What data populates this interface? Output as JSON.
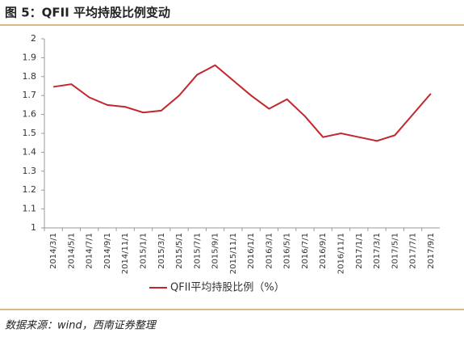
{
  "header": {
    "title": "图 5：QFII 平均持股比例变动"
  },
  "chart_data": {
    "type": "line",
    "categories": [
      "2014/3/1",
      "2014/5/1",
      "2014/7/1",
      "2014/9/1",
      "2014/11/1",
      "2015/1/1",
      "2015/3/1",
      "2015/5/1",
      "2015/7/1",
      "2015/9/1",
      "2015/11/1",
      "2016/1/1",
      "2016/3/1",
      "2016/5/1",
      "2016/7/1",
      "2016/9/1",
      "2016/11/1",
      "2017/1/1",
      "2017/3/1",
      "2017/5/1",
      "2017/7/1",
      "2017/9/1"
    ],
    "series": [
      {
        "name": "QFII平均持股比例（%）",
        "color": "#c0282d",
        "values": [
          1.746,
          1.76,
          1.69,
          1.65,
          1.64,
          1.61,
          1.62,
          1.7,
          1.81,
          1.86,
          1.78,
          1.7,
          1.63,
          1.68,
          1.59,
          1.48,
          1.5,
          1.48,
          1.46,
          1.49,
          1.6,
          1.71
        ]
      }
    ],
    "ylim": [
      1,
      2
    ],
    "yticks": [
      1,
      1.1,
      1.2,
      1.3,
      1.4,
      1.5,
      1.6,
      1.7,
      1.8,
      1.9,
      2
    ],
    "legend": "bottom"
  },
  "footer": {
    "source": "数据来源：wind，西南证券整理"
  }
}
